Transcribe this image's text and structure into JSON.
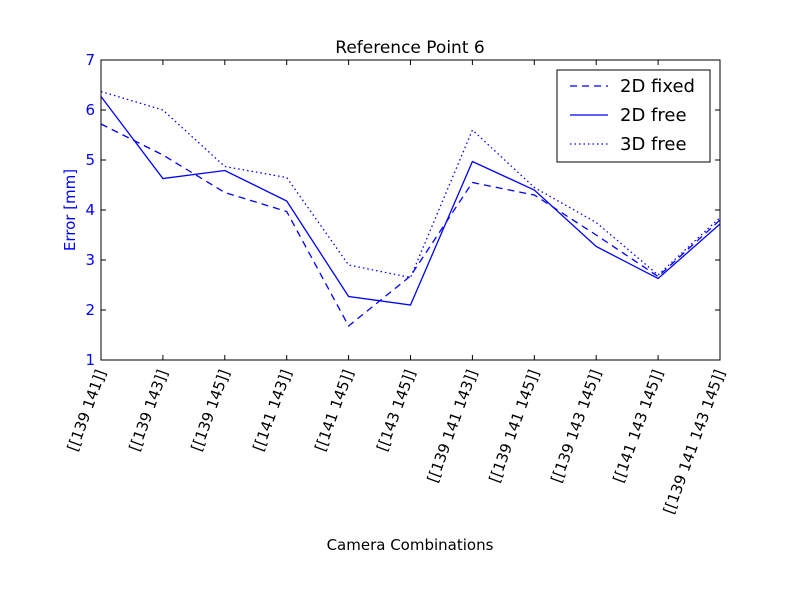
{
  "chart_data": {
    "type": "line",
    "title": "Reference Point 6",
    "xlabel": "Camera Combinations",
    "ylabel": "Error [mm]",
    "ylim": [
      1,
      7
    ],
    "yticks": [
      "1",
      "2",
      "3",
      "4",
      "5",
      "6",
      "7"
    ],
    "categories": [
      "[[139 141]]",
      "[[139 143]]",
      "[[139 145]]",
      "[[141 143]]",
      "[[141 145]]",
      "[[143 145]]",
      "[[139 141 143]]",
      "[[139 141 145]]",
      "[[139 143 145]]",
      "[[141 143 145]]",
      "[[139 141 143 145]]"
    ],
    "series": [
      {
        "name": "2D fixed",
        "style": "dashed",
        "color": "#0000ff",
        "values": [
          5.72,
          5.1,
          4.35,
          3.97,
          1.68,
          2.68,
          4.55,
          4.3,
          3.5,
          2.67,
          3.8
        ]
      },
      {
        "name": "2D free",
        "style": "solid",
        "color": "#0000ff",
        "values": [
          6.27,
          4.63,
          4.79,
          4.18,
          2.27,
          2.1,
          4.97,
          4.4,
          3.27,
          2.63,
          3.72
        ]
      },
      {
        "name": "3D free",
        "style": "dotted",
        "color": "#0000ff",
        "values": [
          6.37,
          6.0,
          4.87,
          4.65,
          2.9,
          2.65,
          5.6,
          4.45,
          3.75,
          2.7,
          3.85
        ]
      }
    ],
    "legend_position": "top-right",
    "grid": false
  }
}
